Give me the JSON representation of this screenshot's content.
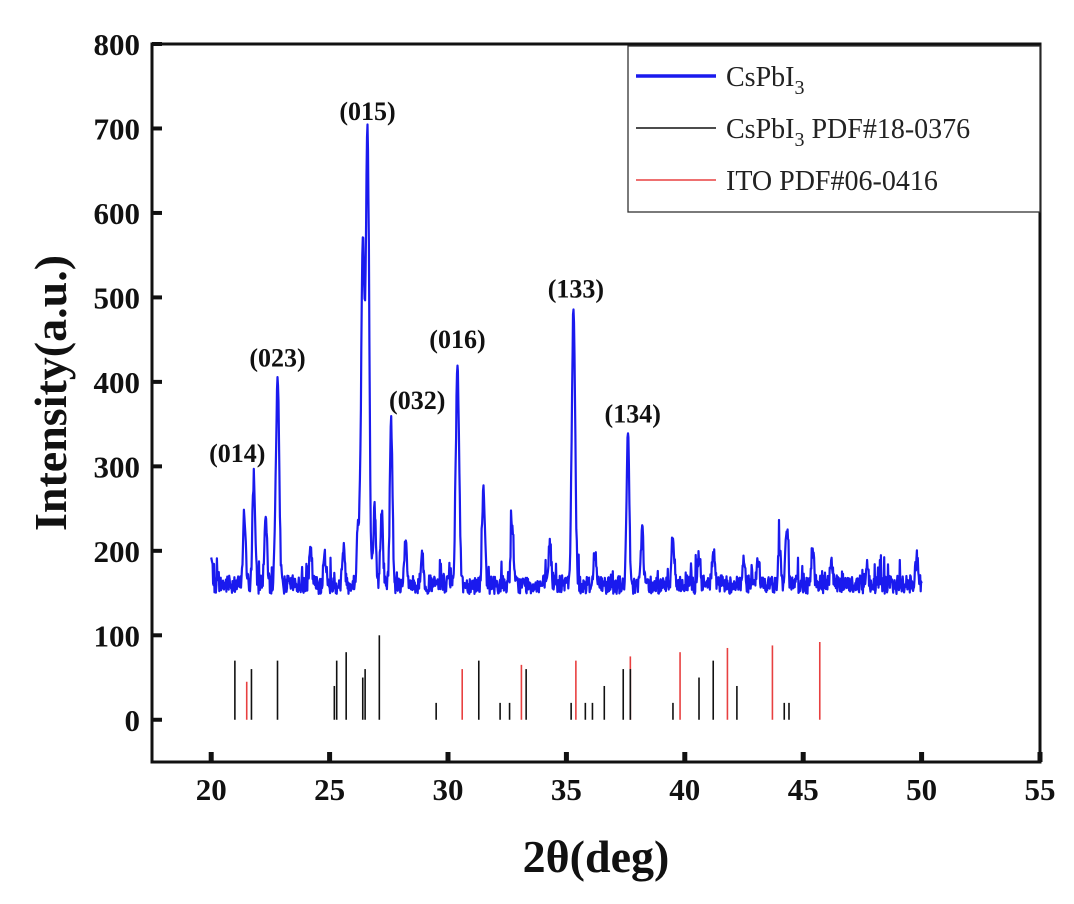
{
  "chart_data": {
    "type": "line",
    "xlabel": "2θ(deg)",
    "ylabel": "Intensity(a.u.)",
    "xlim": [
      17.5,
      55
    ],
    "ylim": [
      -50,
      800
    ],
    "x_ticks": [
      20,
      25,
      30,
      35,
      40,
      45,
      50,
      55
    ],
    "y_ticks": [
      0,
      100,
      200,
      300,
      400,
      500,
      600,
      700,
      800
    ],
    "grid": false,
    "legend_position": "top-right",
    "colors": {
      "measured": "#1a1aee",
      "csPbI3_ref": "#111111",
      "ito_ref": "#e84040",
      "axis": "#111111"
    },
    "legend": [
      {
        "key": "measured",
        "base": "CsPbI",
        "sub": "3",
        "suffix": ""
      },
      {
        "key": "csPbI3_ref",
        "base": "CsPbI",
        "sub": "3",
        "suffix": " PDF#18-0376"
      },
      {
        "key": "ito_ref",
        "base": "ITO  PDF#06-0416",
        "sub": "",
        "suffix": ""
      }
    ],
    "series": [
      {
        "name": "CsPbI3",
        "kind": "line",
        "baseline": 160,
        "x_range": [
          20,
          50
        ],
        "peaks": [
          {
            "x": 20.0,
            "y": 190
          },
          {
            "x": 21.4,
            "y": 245
          },
          {
            "x": 21.8,
            "y": 290
          },
          {
            "x": 22.3,
            "y": 240
          },
          {
            "x": 22.8,
            "y": 405
          },
          {
            "x": 24.2,
            "y": 200
          },
          {
            "x": 24.8,
            "y": 195
          },
          {
            "x": 25.6,
            "y": 200
          },
          {
            "x": 26.2,
            "y": 230
          },
          {
            "x": 26.4,
            "y": 565
          },
          {
            "x": 26.6,
            "y": 695
          },
          {
            "x": 26.9,
            "y": 250
          },
          {
            "x": 27.2,
            "y": 245
          },
          {
            "x": 27.6,
            "y": 355
          },
          {
            "x": 28.2,
            "y": 210
          },
          {
            "x": 28.9,
            "y": 195
          },
          {
            "x": 30.4,
            "y": 425
          },
          {
            "x": 31.5,
            "y": 280
          },
          {
            "x": 32.7,
            "y": 230
          },
          {
            "x": 34.3,
            "y": 210
          },
          {
            "x": 35.3,
            "y": 485
          },
          {
            "x": 36.2,
            "y": 200
          },
          {
            "x": 37.6,
            "y": 340
          },
          {
            "x": 38.2,
            "y": 225
          },
          {
            "x": 39.5,
            "y": 215
          },
          {
            "x": 40.6,
            "y": 195
          },
          {
            "x": 41.2,
            "y": 200
          },
          {
            "x": 42.5,
            "y": 190
          },
          {
            "x": 43.1,
            "y": 190
          },
          {
            "x": 44.0,
            "y": 205
          },
          {
            "x": 44.3,
            "y": 215
          },
          {
            "x": 45.4,
            "y": 205
          },
          {
            "x": 46.2,
            "y": 190
          },
          {
            "x": 47.7,
            "y": 185
          },
          {
            "x": 49.8,
            "y": 190
          }
        ]
      },
      {
        "name": "CsPbI3 PDF#18-0376",
        "kind": "sticks",
        "sticks": [
          {
            "x": 21.0,
            "y": 70
          },
          {
            "x": 21.7,
            "y": 60
          },
          {
            "x": 22.8,
            "y": 70
          },
          {
            "x": 25.2,
            "y": 40
          },
          {
            "x": 25.3,
            "y": 70
          },
          {
            "x": 25.7,
            "y": 80
          },
          {
            "x": 26.4,
            "y": 50
          },
          {
            "x": 26.5,
            "y": 60
          },
          {
            "x": 27.1,
            "y": 100
          },
          {
            "x": 29.5,
            "y": 20
          },
          {
            "x": 31.3,
            "y": 70
          },
          {
            "x": 32.2,
            "y": 20
          },
          {
            "x": 32.6,
            "y": 20
          },
          {
            "x": 33.3,
            "y": 60
          },
          {
            "x": 35.2,
            "y": 20
          },
          {
            "x": 35.8,
            "y": 20
          },
          {
            "x": 36.1,
            "y": 20
          },
          {
            "x": 36.6,
            "y": 40
          },
          {
            "x": 37.4,
            "y": 60
          },
          {
            "x": 37.7,
            "y": 60
          },
          {
            "x": 39.5,
            "y": 20
          },
          {
            "x": 40.6,
            "y": 50
          },
          {
            "x": 41.2,
            "y": 70
          },
          {
            "x": 42.2,
            "y": 40
          },
          {
            "x": 44.2,
            "y": 20
          },
          {
            "x": 44.4,
            "y": 20
          }
        ]
      },
      {
        "name": "ITO PDF#06-0416",
        "kind": "sticks",
        "sticks": [
          {
            "x": 21.5,
            "y": 45
          },
          {
            "x": 30.6,
            "y": 60
          },
          {
            "x": 33.1,
            "y": 65
          },
          {
            "x": 35.4,
            "y": 70
          },
          {
            "x": 37.7,
            "y": 75
          },
          {
            "x": 39.8,
            "y": 80
          },
          {
            "x": 41.8,
            "y": 85
          },
          {
            "x": 43.7,
            "y": 88
          },
          {
            "x": 45.7,
            "y": 92
          }
        ]
      }
    ],
    "annotations": [
      {
        "text": "(014)",
        "x": 21.1,
        "y": 305
      },
      {
        "text": "(023)",
        "x": 22.8,
        "y": 418
      },
      {
        "text": "(015)",
        "x": 26.6,
        "y": 710
      },
      {
        "text": "(032)",
        "x": 28.7,
        "y": 368
      },
      {
        "text": "(016)",
        "x": 30.4,
        "y": 440
      },
      {
        "text": "(133)",
        "x": 35.4,
        "y": 500
      },
      {
        "text": "(134)",
        "x": 37.8,
        "y": 352
      }
    ]
  }
}
